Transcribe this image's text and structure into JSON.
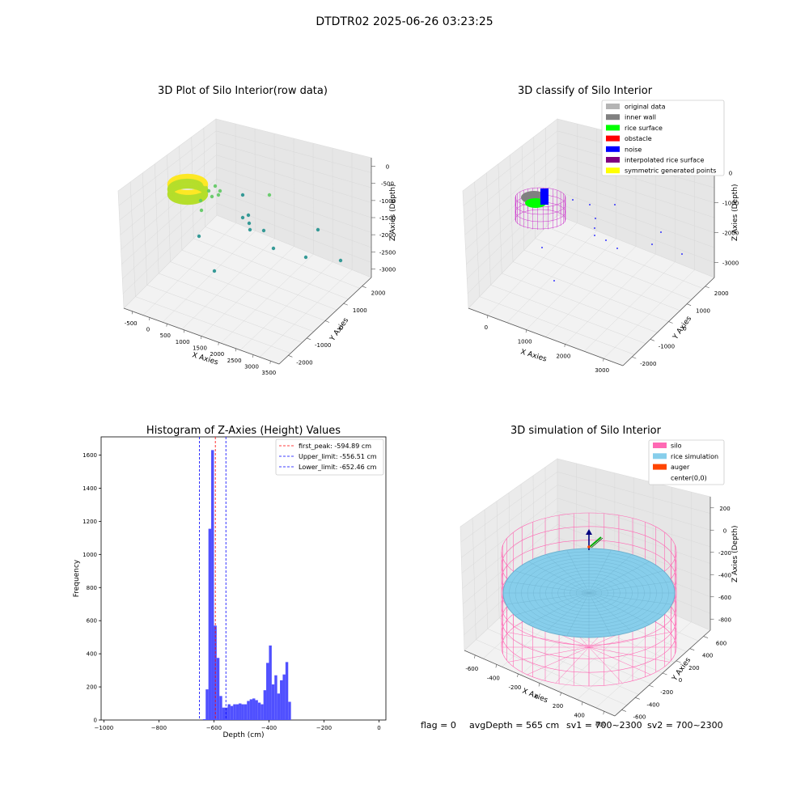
{
  "suptitle": "DTDTR02 2025-06-26 03:23:25",
  "footer": {
    "flag": "flag = 0",
    "avg_depth": "avgDepth = 565 cm",
    "sv1": "sv1 = 700~2300",
    "sv2": "sv2 = 700~2300"
  },
  "chart_data": [
    {
      "type": "scatter",
      "projection": "3d",
      "title": "3D Plot of Silo Interior(row data)",
      "xlabel": "X Axies",
      "ylabel": "Y Axies",
      "zlabel": "Z Axies (Depth)",
      "x_ticks": [
        "-500",
        "0",
        "500",
        "1000",
        "1500",
        "2000",
        "2500",
        "3000",
        "3500"
      ],
      "y_ticks": [
        "-2000",
        "-1000",
        "0",
        "1000",
        "2000"
      ],
      "z_ticks": [
        "0",
        "-500",
        "-1000",
        "-1500",
        "-2000",
        "-2500",
        "-3000"
      ],
      "grid": true,
      "colormap": [
        "#21908d",
        "#5ec962",
        "#b5de2b",
        "#fde725"
      ]
    },
    {
      "type": "scatter",
      "projection": "3d",
      "title": "3D classify of Silo Interior",
      "xlabel": "X Axies",
      "ylabel": "Y Axies",
      "zlabel": "Z Axies (Depth)",
      "x_ticks": [
        "0",
        "1000",
        "2000",
        "3000"
      ],
      "y_ticks": [
        "-2000",
        "-1000",
        "0",
        "1000",
        "2000"
      ],
      "z_ticks": [
        "0",
        "-1000",
        "-2000",
        "-3000"
      ],
      "grid": true,
      "legend_position": "top-right",
      "legend": [
        {
          "label": "original data",
          "color": "#b4b4b4"
        },
        {
          "label": "inner wall",
          "color": "#808080"
        },
        {
          "label": "rice surface",
          "color": "#00ff00"
        },
        {
          "label": "obstacle",
          "color": "#ff0000"
        },
        {
          "label": "noise",
          "color": "#0000ff"
        },
        {
          "label": "interpolated rice surface",
          "color": "#800080"
        },
        {
          "label": "symmetric generated points",
          "color": "#ffff00"
        }
      ]
    },
    {
      "type": "bar",
      "title": "Histogram of Z-Axies (Height) Values",
      "xlabel": "Depth (cm)",
      "ylabel": "Frequency",
      "xlim": [
        -1010,
        25
      ],
      "ylim": [
        0,
        1710
      ],
      "x_ticks": [
        -1000,
        -800,
        -600,
        -400,
        -200,
        0
      ],
      "y_ticks": [
        0,
        200,
        400,
        600,
        800,
        1000,
        1200,
        1400,
        1600
      ],
      "bar_color": "#5050ff",
      "bin_width": 10,
      "bins": [
        {
          "x": -640,
          "count": 5
        },
        {
          "x": -630,
          "count": 185
        },
        {
          "x": -620,
          "count": 1155
        },
        {
          "x": -610,
          "count": 1630
        },
        {
          "x": -600,
          "count": 570
        },
        {
          "x": -590,
          "count": 375
        },
        {
          "x": -580,
          "count": 145
        },
        {
          "x": -570,
          "count": 75
        },
        {
          "x": -560,
          "count": 75
        },
        {
          "x": -550,
          "count": 95
        },
        {
          "x": -540,
          "count": 85
        },
        {
          "x": -530,
          "count": 95
        },
        {
          "x": -520,
          "count": 95
        },
        {
          "x": -510,
          "count": 100
        },
        {
          "x": -500,
          "count": 95
        },
        {
          "x": -490,
          "count": 95
        },
        {
          "x": -480,
          "count": 115
        },
        {
          "x": -470,
          "count": 125
        },
        {
          "x": -460,
          "count": 130
        },
        {
          "x": -450,
          "count": 120
        },
        {
          "x": -440,
          "count": 105
        },
        {
          "x": -430,
          "count": 95
        },
        {
          "x": -420,
          "count": 180
        },
        {
          "x": -410,
          "count": 345
        },
        {
          "x": -400,
          "count": 450
        },
        {
          "x": -390,
          "count": 215
        },
        {
          "x": -380,
          "count": 270
        },
        {
          "x": -370,
          "count": 160
        },
        {
          "x": -360,
          "count": 240
        },
        {
          "x": -350,
          "count": 275
        },
        {
          "x": -340,
          "count": 350
        },
        {
          "x": -330,
          "count": 110
        }
      ],
      "vlines": [
        {
          "label": "first_peak: -594.89 cm",
          "value": -594.89,
          "color": "#ff0000"
        },
        {
          "label": "Upper_limit: -556.51 cm",
          "value": -556.51,
          "color": "#0000ff"
        },
        {
          "label": "Lower_limit: -652.46 cm",
          "value": -652.46,
          "color": "#0000ff"
        }
      ],
      "legend_position": "top-right"
    },
    {
      "type": "surface",
      "projection": "3d",
      "title": "3D simulation of Silo Interior",
      "xlabel": "X Axies",
      "ylabel": "Y Axies",
      "zlabel": "Z Axies (Depth)",
      "x_ticks": [
        "-600",
        "-400",
        "-200",
        "0",
        "200",
        "400",
        "600"
      ],
      "y_ticks": [
        "-600",
        "-400",
        "-200",
        "0",
        "200",
        "400",
        "600"
      ],
      "z_ticks": [
        "200",
        "0",
        "-200",
        "-400",
        "-600",
        "-800"
      ],
      "grid": true,
      "legend_position": "top-right",
      "legend": [
        {
          "label": "silo",
          "color": "#ff69b4"
        },
        {
          "label": "rice simulation",
          "color": "#87ceeb"
        },
        {
          "label": "auger",
          "color": "#ff4500"
        },
        {
          "label": "center(0,0)",
          "color": "#ffffff"
        }
      ]
    }
  ]
}
